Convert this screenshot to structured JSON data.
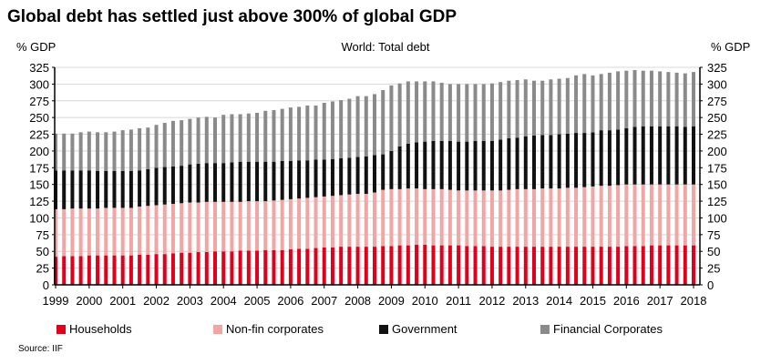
{
  "title": "Global debt has settled just above 300% of global GDP",
  "source": "Source: IIF",
  "chart_data": {
    "type": "bar",
    "stacked": true,
    "title": "World: Total debt",
    "ylabel_left": "% GDP",
    "ylabel_right": "% GDP",
    "ylim": [
      0,
      325
    ],
    "yticks": [
      0,
      25,
      50,
      75,
      100,
      125,
      150,
      175,
      200,
      225,
      250,
      275,
      300,
      325
    ],
    "grid": true,
    "legend": "bottom",
    "frequency": "quarterly",
    "start": "1999-Q1",
    "xticks": [
      "1999",
      "2000",
      "2001",
      "2002",
      "2003",
      "2004",
      "2005",
      "2006",
      "2007",
      "2008",
      "2009",
      "2010",
      "2011",
      "2012",
      "2013",
      "2014",
      "2015",
      "2016",
      "2017",
      "2018"
    ],
    "series": [
      {
        "name": "Households",
        "color": "#e0001b",
        "values": [
          42,
          43,
          43,
          43,
          44,
          44,
          44,
          44,
          44,
          44,
          45,
          45,
          46,
          46,
          47,
          48,
          48,
          49,
          49,
          50,
          50,
          50,
          51,
          51,
          51,
          52,
          52,
          52,
          53,
          54,
          54,
          55,
          56,
          56,
          57,
          57,
          57,
          57,
          57,
          58,
          58,
          59,
          59,
          60,
          60,
          59,
          59,
          59,
          59,
          58,
          58,
          58,
          57,
          57,
          57,
          57,
          57,
          57,
          57,
          57,
          57,
          57,
          57,
          57,
          57,
          57,
          57,
          57,
          58,
          58,
          58,
          59,
          59,
          59,
          59,
          59,
          59
        ]
      },
      {
        "name": "Non-fin corporates",
        "color": "#f2a5a5",
        "values": [
          71,
          70,
          71,
          71,
          70,
          70,
          71,
          71,
          71,
          71,
          72,
          73,
          73,
          74,
          74,
          74,
          75,
          74,
          75,
          74,
          74,
          74,
          73,
          74,
          74,
          73,
          74,
          75,
          75,
          75,
          76,
          76,
          76,
          77,
          77,
          78,
          79,
          79,
          81,
          84,
          85,
          84,
          85,
          84,
          83,
          84,
          84,
          83,
          82,
          83,
          83,
          83,
          84,
          84,
          85,
          86,
          86,
          86,
          87,
          87,
          87,
          88,
          88,
          89,
          90,
          91,
          91,
          92,
          92,
          92,
          92,
          91,
          91,
          91,
          91,
          91,
          91
        ]
      },
      {
        "name": "Government",
        "color": "#111111",
        "values": [
          58,
          58,
          57,
          57,
          57,
          56,
          55,
          55,
          55,
          55,
          54,
          55,
          56,
          56,
          56,
          56,
          57,
          58,
          58,
          58,
          58,
          59,
          60,
          59,
          59,
          59,
          58,
          58,
          57,
          57,
          56,
          56,
          55,
          55,
          55,
          55,
          55,
          56,
          56,
          53,
          57,
          64,
          67,
          69,
          71,
          72,
          72,
          73,
          73,
          73,
          74,
          74,
          74,
          76,
          77,
          77,
          79,
          80,
          80,
          80,
          81,
          81,
          82,
          81,
          81,
          83,
          83,
          83,
          84,
          86,
          87,
          87,
          87,
          87,
          87,
          86,
          87
        ]
      },
      {
        "name": "Financial Corporates",
        "color": "#8a8a8a",
        "values": [
          55,
          55,
          55,
          57,
          58,
          58,
          58,
          59,
          61,
          62,
          63,
          62,
          64,
          66,
          68,
          68,
          68,
          69,
          69,
          68,
          72,
          72,
          71,
          72,
          73,
          76,
          77,
          78,
          80,
          80,
          82,
          81,
          85,
          86,
          87,
          88,
          91,
          90,
          91,
          96,
          98,
          94,
          93,
          91,
          90,
          89,
          87,
          85,
          86,
          86,
          85,
          85,
          86,
          86,
          86,
          86,
          85,
          82,
          81,
          83,
          83,
          83,
          86,
          88,
          85,
          84,
          86,
          87,
          86,
          85,
          83,
          83,
          82,
          81,
          80,
          80,
          81
        ]
      }
    ]
  }
}
